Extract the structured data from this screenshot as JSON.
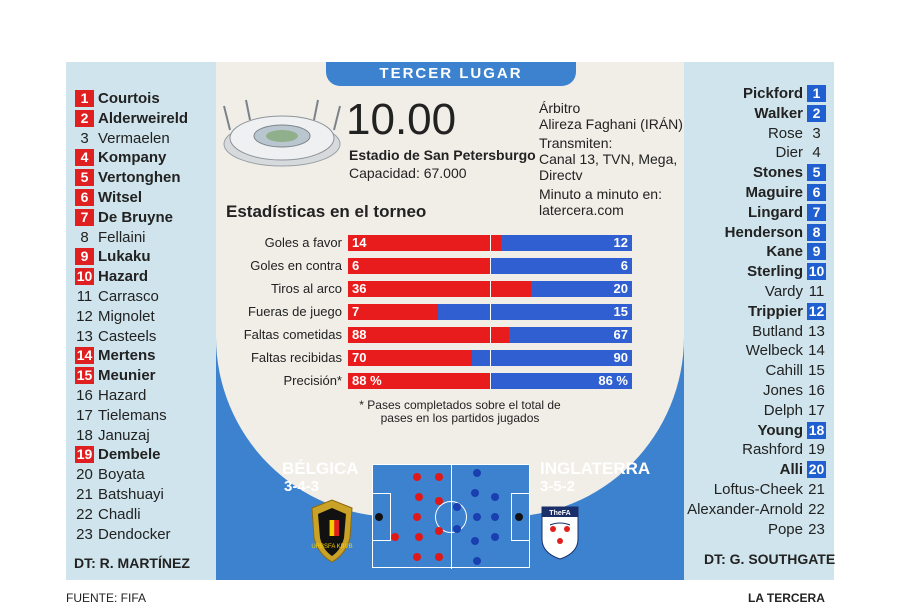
{
  "header": {
    "title": "TERCER LUGAR"
  },
  "match": {
    "time": "10.00",
    "stadium": "Estadio de San Petersburgo",
    "capacity": "Capacidad: 67.000",
    "referee_label": "Árbitro",
    "referee": "Alireza Faghani (IRÁN)",
    "broadcast_label": "Transmiten:",
    "broadcast_1": "Canal 13, TVN, Mega,",
    "broadcast_2": "Directv",
    "live_label": "Minuto a minuto en:",
    "live_site": "latercera.com"
  },
  "stats": {
    "title": "Estadísticas en el torneo",
    "rows": [
      {
        "label": "Goles a favor",
        "left": "14",
        "right": "12",
        "left_share": 0.538
      },
      {
        "label": "Goles en contra",
        "left": "6",
        "right": "6",
        "left_share": 0.5
      },
      {
        "label": "Tiros al arco",
        "left": "36",
        "right": "20",
        "left_share": 0.643
      },
      {
        "label": "Fueras de juego",
        "left": "7",
        "right": "15",
        "left_share": 0.318
      },
      {
        "label": "Faltas cometidas",
        "left": "88",
        "right": "67",
        "left_share": 0.568
      },
      {
        "label": "Faltas recibidas",
        "left": "70",
        "right": "90",
        "left_share": 0.4375
      },
      {
        "label": "Precisión*",
        "left": "88 %",
        "right": "86 %",
        "left_share": 0.506
      }
    ],
    "footnote_1": "* Pases completados sobre el total de",
    "footnote_2": "pases en los partidos jugados"
  },
  "teams": {
    "left": {
      "name": "BÉLGICA",
      "formation": "3-4-3",
      "coach": "DT: R. MARTÍNEZ",
      "color": "#e02020"
    },
    "right": {
      "name": "INGLATERRA",
      "formation": "3-5-2",
      "coach": "DT: G. SOUTHGATE",
      "color": "#1f5fd0"
    }
  },
  "belgium_roster": [
    {
      "num": "1",
      "name": "Courtois",
      "starter": true
    },
    {
      "num": "2",
      "name": "Alderweireld",
      "starter": true
    },
    {
      "num": "3",
      "name": "Vermaelen",
      "starter": false
    },
    {
      "num": "4",
      "name": "Kompany",
      "starter": true
    },
    {
      "num": "5",
      "name": "Vertonghen",
      "starter": true
    },
    {
      "num": "6",
      "name": "Witsel",
      "starter": true
    },
    {
      "num": "7",
      "name": "De Bruyne",
      "starter": true
    },
    {
      "num": "8",
      "name": "Fellaini",
      "starter": false
    },
    {
      "num": "9",
      "name": "Lukaku",
      "starter": true
    },
    {
      "num": "10",
      "name": "Hazard",
      "starter": true
    },
    {
      "num": "11",
      "name": "Carrasco",
      "starter": false
    },
    {
      "num": "12",
      "name": "Mignolet",
      "starter": false
    },
    {
      "num": "13",
      "name": "Casteels",
      "starter": false
    },
    {
      "num": "14",
      "name": "Mertens",
      "starter": true
    },
    {
      "num": "15",
      "name": "Meunier",
      "starter": true
    },
    {
      "num": "16",
      "name": "Hazard",
      "starter": false
    },
    {
      "num": "17",
      "name": "Tielemans",
      "starter": false
    },
    {
      "num": "18",
      "name": "Januzaj",
      "starter": false
    },
    {
      "num": "19",
      "name": "Dembele",
      "starter": true
    },
    {
      "num": "20",
      "name": "Boyata",
      "starter": false
    },
    {
      "num": "21",
      "name": "Batshuayi",
      "starter": false
    },
    {
      "num": "22",
      "name": "Chadli",
      "starter": false
    },
    {
      "num": "23",
      "name": "Dendocker",
      "starter": false
    }
  ],
  "england_roster": [
    {
      "num": "1",
      "name": "Pickford",
      "starter": true
    },
    {
      "num": "2",
      "name": "Walker",
      "starter": true
    },
    {
      "num": "3",
      "name": "Rose",
      "starter": false
    },
    {
      "num": "4",
      "name": "Dier",
      "starter": false
    },
    {
      "num": "5",
      "name": "Stones",
      "starter": true
    },
    {
      "num": "6",
      "name": "Maguire",
      "starter": true
    },
    {
      "num": "7",
      "name": "Lingard",
      "starter": true
    },
    {
      "num": "8",
      "name": "Henderson",
      "starter": true
    },
    {
      "num": "9",
      "name": "Kane",
      "starter": true
    },
    {
      "num": "10",
      "name": "Sterling",
      "starter": true
    },
    {
      "num": "11",
      "name": "Vardy",
      "starter": false
    },
    {
      "num": "12",
      "name": "Trippier",
      "starter": true
    },
    {
      "num": "13",
      "name": "Butland",
      "starter": false
    },
    {
      "num": "14",
      "name": "Welbeck",
      "starter": false
    },
    {
      "num": "15",
      "name": "Cahill",
      "starter": false
    },
    {
      "num": "16",
      "name": "Jones",
      "starter": false
    },
    {
      "num": "17",
      "name": "Delph",
      "starter": false
    },
    {
      "num": "18",
      "name": "Young",
      "starter": true
    },
    {
      "num": "19",
      "name": "Rashford",
      "starter": false
    },
    {
      "num": "20",
      "name": "Alli",
      "starter": true
    },
    {
      "num": "21",
      "name": "Loftus-Cheek",
      "starter": false
    },
    {
      "num": "22",
      "name": "Alexander-Arnold",
      "starter": false
    },
    {
      "num": "23",
      "name": "Pope",
      "starter": false
    }
  ],
  "footer": {
    "source": "FUENTE: FIFA",
    "brand": "LA TERCERA"
  },
  "badges": {
    "belgium_text": "URBSFA KBVB",
    "england_text": "TheFA"
  }
}
